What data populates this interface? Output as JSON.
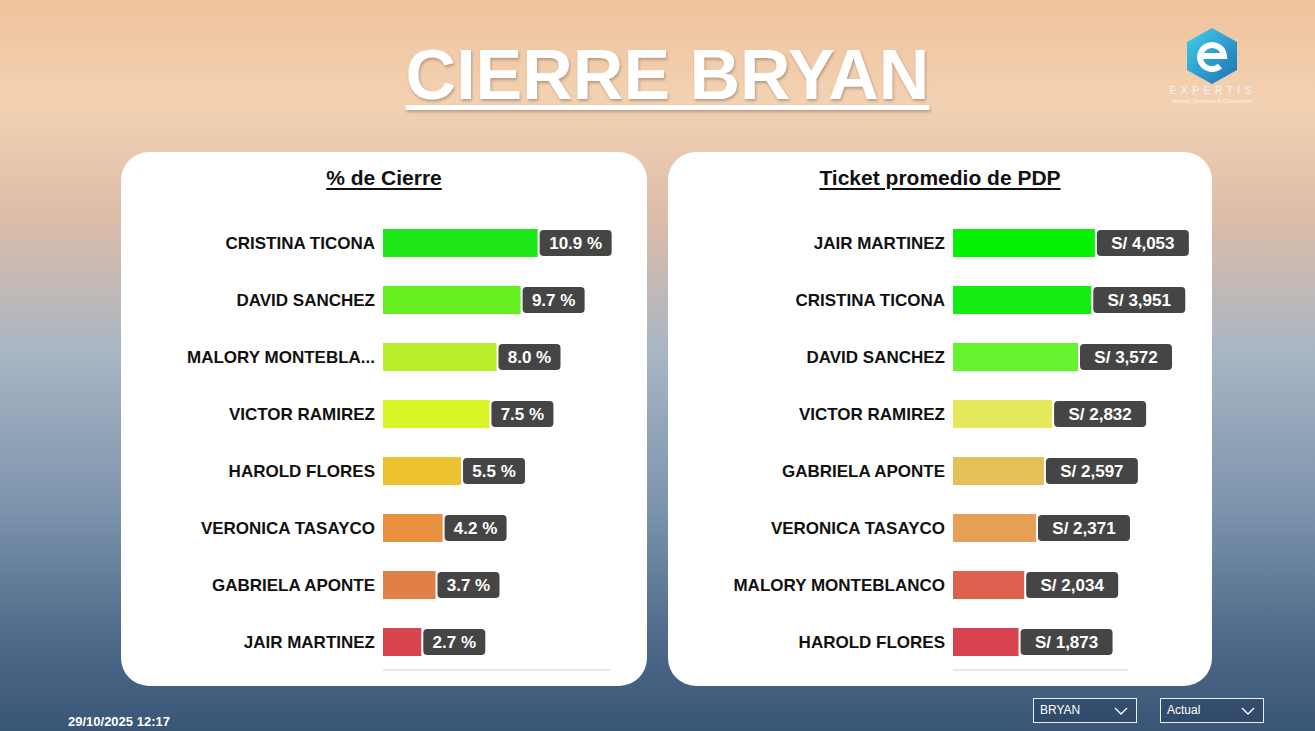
{
  "title": "CIERRE BRYAN",
  "logo": {
    "name": "EXPERTIS",
    "tagline": "Money Services & Collections"
  },
  "timestamp": "29/10/2025 12:17",
  "filters": [
    "BRYAN",
    "Actual"
  ],
  "chart_data": [
    {
      "type": "bar",
      "title": "% de Cierre",
      "orientation": "horizontal",
      "categories": [
        "CRISTINA TICONA",
        "DAVID SANCHEZ",
        "MALORY MONTEBLA...",
        "VICTOR RAMIREZ",
        "HAROLD FLORES",
        "VERONICA TASAYCO",
        "GABRIELA APONTE",
        "JAIR MARTINEZ"
      ],
      "values": [
        10.9,
        9.7,
        8.0,
        7.5,
        5.5,
        4.2,
        3.7,
        2.7
      ],
      "value_labels": [
        "10.9 %",
        "9.7 %",
        "8.0 %",
        "7.5 %",
        "5.5 %",
        "4.2 %",
        "3.7 %",
        "2.7 %"
      ],
      "colors": [
        "#1ee81a",
        "#66f022",
        "#b8f02c",
        "#d8f424",
        "#ecc22e",
        "#e8903e",
        "#e07f48",
        "#d9454f"
      ],
      "xlim": [
        0,
        16
      ],
      "data_labels": true,
      "tick_labels": "y",
      "grid": false
    },
    {
      "type": "bar",
      "title": "Ticket promedio de PDP",
      "orientation": "horizontal",
      "categories": [
        "JAIR MARTINEZ",
        "CRISTINA TICONA",
        "DAVID SANCHEZ",
        "VICTOR RAMIREZ",
        "GABRIELA APONTE",
        "VERONICA TASAYCO",
        "MALORY MONTEBLANCO",
        "HAROLD FLORES"
      ],
      "values": [
        4053,
        3951,
        3572,
        2832,
        2597,
        2371,
        2034,
        1873
      ],
      "value_labels": [
        "S/ 4,053",
        "S/ 3,951",
        "S/ 3,572",
        "S/ 2,832",
        "S/ 2,597",
        "S/ 2,371",
        "S/ 2,034",
        "S/ 1,873"
      ],
      "colors": [
        "#05f005",
        "#14ec14",
        "#66f22e",
        "#e5e85a",
        "#e4c058",
        "#e4a055",
        "#de6150",
        "#d9434f"
      ],
      "xlim": [
        0,
        5000
      ],
      "data_labels": true,
      "tick_labels": "y",
      "grid": false
    }
  ]
}
